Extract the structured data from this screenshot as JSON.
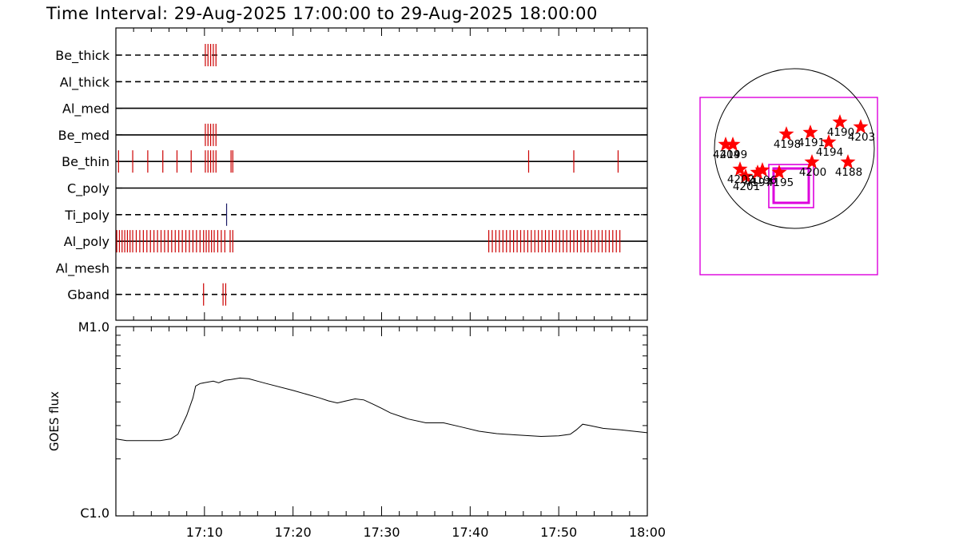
{
  "title": "Time Interval: 29-Aug-2025 17:00:00 to 29-Aug-2025 18:00:00",
  "colors": {
    "event_tick": "#cc0000",
    "event_tick_blue": "#1a1a66",
    "frame": "#000000",
    "fov_box": "#dd00dd",
    "star": "#ff0000"
  },
  "chart_data": [
    {
      "type": "timeline",
      "title": "",
      "x_range_minutes": [
        0,
        60
      ],
      "channels": [
        {
          "name": "Be_thick",
          "line": "dashed",
          "events": [
            {
              "t": 10.1,
              "color": "red"
            },
            {
              "t": 10.4,
              "color": "red"
            },
            {
              "t": 10.7,
              "color": "red"
            },
            {
              "t": 11.0,
              "color": "red"
            },
            {
              "t": 11.3,
              "color": "red"
            }
          ]
        },
        {
          "name": "Al_thick",
          "line": "dashed",
          "events": []
        },
        {
          "name": "Al_med",
          "line": "solid",
          "events": []
        },
        {
          "name": "Be_med",
          "line": "solid",
          "events": [
            {
              "t": 10.1,
              "color": "red"
            },
            {
              "t": 10.4,
              "color": "red"
            },
            {
              "t": 10.7,
              "color": "red"
            },
            {
              "t": 11.0,
              "color": "red"
            },
            {
              "t": 11.3,
              "color": "red"
            }
          ]
        },
        {
          "name": "Be_thin",
          "line": "solid",
          "events": [
            {
              "t": 0.3,
              "color": "red"
            },
            {
              "t": 1.9,
              "color": "red"
            },
            {
              "t": 3.6,
              "color": "red"
            },
            {
              "t": 5.3,
              "color": "red"
            },
            {
              "t": 6.9,
              "color": "red"
            },
            {
              "t": 8.5,
              "color": "red"
            },
            {
              "t": 10.1,
              "color": "red"
            },
            {
              "t": 10.4,
              "color": "red"
            },
            {
              "t": 10.7,
              "color": "red"
            },
            {
              "t": 11.0,
              "color": "red"
            },
            {
              "t": 11.3,
              "color": "red"
            },
            {
              "t": 13.0,
              "color": "red"
            },
            {
              "t": 13.2,
              "color": "red"
            },
            {
              "t": 46.6,
              "color": "red"
            },
            {
              "t": 51.7,
              "color": "red"
            },
            {
              "t": 56.7,
              "color": "red"
            }
          ]
        },
        {
          "name": "C_poly",
          "line": "solid",
          "events": []
        },
        {
          "name": "Ti_poly",
          "line": "dashed",
          "events": [
            {
              "t": 12.5,
              "color": "blue"
            }
          ]
        },
        {
          "name": "Al_poly",
          "line": "solid",
          "events": [
            {
              "t": 0.1,
              "color": "red"
            },
            {
              "t": 0.4,
              "color": "red"
            },
            {
              "t": 0.7,
              "color": "red"
            },
            {
              "t": 1.0,
              "color": "red"
            },
            {
              "t": 1.3,
              "color": "red"
            },
            {
              "t": 1.6,
              "color": "red"
            },
            {
              "t": 1.9,
              "color": "red"
            },
            {
              "t": 2.3,
              "color": "red"
            },
            {
              "t": 2.7,
              "color": "red"
            },
            {
              "t": 3.1,
              "color": "red"
            },
            {
              "t": 3.5,
              "color": "red"
            },
            {
              "t": 3.9,
              "color": "red"
            },
            {
              "t": 4.3,
              "color": "red"
            },
            {
              "t": 4.7,
              "color": "red"
            },
            {
              "t": 5.1,
              "color": "red"
            },
            {
              "t": 5.5,
              "color": "red"
            },
            {
              "t": 5.9,
              "color": "red"
            },
            {
              "t": 6.3,
              "color": "red"
            },
            {
              "t": 6.7,
              "color": "red"
            },
            {
              "t": 7.1,
              "color": "red"
            },
            {
              "t": 7.5,
              "color": "red"
            },
            {
              "t": 7.9,
              "color": "red"
            },
            {
              "t": 8.3,
              "color": "red"
            },
            {
              "t": 8.7,
              "color": "red"
            },
            {
              "t": 9.1,
              "color": "red"
            },
            {
              "t": 9.5,
              "color": "red"
            },
            {
              "t": 9.9,
              "color": "red"
            },
            {
              "t": 10.2,
              "color": "red"
            },
            {
              "t": 10.5,
              "color": "red"
            },
            {
              "t": 10.8,
              "color": "red"
            },
            {
              "t": 11.1,
              "color": "red"
            },
            {
              "t": 11.5,
              "color": "red"
            },
            {
              "t": 11.9,
              "color": "red"
            },
            {
              "t": 12.3,
              "color": "red"
            },
            {
              "t": 12.9,
              "color": "red"
            },
            {
              "t": 13.2,
              "color": "red"
            },
            {
              "t": 42.1,
              "color": "red"
            },
            {
              "t": 42.5,
              "color": "red"
            },
            {
              "t": 42.9,
              "color": "red"
            },
            {
              "t": 43.3,
              "color": "red"
            },
            {
              "t": 43.7,
              "color": "red"
            },
            {
              "t": 44.1,
              "color": "red"
            },
            {
              "t": 44.5,
              "color": "red"
            },
            {
              "t": 44.9,
              "color": "red"
            },
            {
              "t": 45.3,
              "color": "red"
            },
            {
              "t": 45.7,
              "color": "red"
            },
            {
              "t": 46.1,
              "color": "red"
            },
            {
              "t": 46.5,
              "color": "red"
            },
            {
              "t": 46.9,
              "color": "red"
            },
            {
              "t": 47.3,
              "color": "red"
            },
            {
              "t": 47.7,
              "color": "red"
            },
            {
              "t": 48.1,
              "color": "red"
            },
            {
              "t": 48.5,
              "color": "red"
            },
            {
              "t": 48.9,
              "color": "red"
            },
            {
              "t": 49.3,
              "color": "red"
            },
            {
              "t": 49.7,
              "color": "red"
            },
            {
              "t": 50.1,
              "color": "red"
            },
            {
              "t": 50.5,
              "color": "red"
            },
            {
              "t": 50.9,
              "color": "red"
            },
            {
              "t": 51.3,
              "color": "red"
            },
            {
              "t": 51.7,
              "color": "red"
            },
            {
              "t": 52.1,
              "color": "red"
            },
            {
              "t": 52.5,
              "color": "red"
            },
            {
              "t": 52.9,
              "color": "red"
            },
            {
              "t": 53.3,
              "color": "red"
            },
            {
              "t": 53.7,
              "color": "red"
            },
            {
              "t": 54.1,
              "color": "red"
            },
            {
              "t": 54.5,
              "color": "red"
            },
            {
              "t": 54.9,
              "color": "red"
            },
            {
              "t": 55.3,
              "color": "red"
            },
            {
              "t": 55.7,
              "color": "red"
            },
            {
              "t": 56.1,
              "color": "red"
            },
            {
              "t": 56.5,
              "color": "red"
            },
            {
              "t": 56.9,
              "color": "red"
            }
          ]
        },
        {
          "name": "Al_mesh",
          "line": "dashed",
          "events": []
        },
        {
          "name": "Gband",
          "line": "dashed",
          "events": [
            {
              "t": 9.9,
              "color": "red"
            },
            {
              "t": 12.1,
              "color": "red"
            },
            {
              "t": 12.4,
              "color": "red"
            }
          ]
        }
      ]
    },
    {
      "type": "line",
      "title": "",
      "ylabel": "GOES flux",
      "ytick_labels": [
        "M1.0",
        "C1.0"
      ],
      "ylim": [
        1e-06,
        1e-05
      ],
      "yscale": "log",
      "x_range_minutes": [
        0,
        60
      ],
      "xtick_labels": [
        "17:10",
        "17:20",
        "17:30",
        "17:40",
        "17:50",
        "18:00"
      ],
      "x": [
        0,
        1.2,
        3,
        5,
        6.2,
        7,
        8,
        8.7,
        9,
        9.5,
        10,
        11,
        11.6,
        12.3,
        13,
        14,
        15,
        16,
        17,
        20,
        23,
        24,
        25,
        26,
        27,
        28,
        29,
        30,
        31,
        33,
        35,
        37,
        39,
        41,
        43,
        45,
        48,
        50,
        51.3,
        52,
        52.7,
        53.5,
        55,
        57,
        60
      ],
      "y": [
        2.55e-06,
        2.5e-06,
        2.5e-06,
        2.5e-06,
        2.55e-06,
        2.7e-06,
        3.4e-06,
        4.2e-06,
        4.85e-06,
        5e-06,
        5.05e-06,
        5.15e-06,
        5.05e-06,
        5.2e-06,
        5.25e-06,
        5.35e-06,
        5.3e-06,
        5.15e-06,
        5e-06,
        4.6e-06,
        4.2e-06,
        4.05e-06,
        3.95e-06,
        4.05e-06,
        4.15e-06,
        4.1e-06,
        3.9e-06,
        3.7e-06,
        3.5e-06,
        3.25e-06,
        3.1e-06,
        3.1e-06,
        2.95e-06,
        2.8e-06,
        2.72e-06,
        2.68e-06,
        2.63e-06,
        2.65e-06,
        2.7e-06,
        2.85e-06,
        3.05e-06,
        3e-06,
        2.9e-06,
        2.85e-06,
        2.75e-06
      ]
    },
    {
      "type": "scatter",
      "title": "",
      "description": "solar disk map with active regions",
      "points": [
        {
          "label": "4204",
          "x": -0.86,
          "y": 0.05
        },
        {
          "label": "4199",
          "x": -0.77,
          "y": 0.05
        },
        {
          "label": "4198",
          "x": -0.1,
          "y": 0.18
        },
        {
          "label": "4191",
          "x": 0.2,
          "y": 0.2
        },
        {
          "label": "4190",
          "x": 0.57,
          "y": 0.33
        },
        {
          "label": "4203",
          "x": 0.83,
          "y": 0.27
        },
        {
          "label": "4194",
          "x": 0.43,
          "y": 0.08
        },
        {
          "label": "4188",
          "x": 0.67,
          "y": -0.17
        },
        {
          "label": "4200",
          "x": 0.22,
          "y": -0.17
        },
        {
          "label": "4195",
          "x": -0.19,
          "y": -0.3
        },
        {
          "label": "4196",
          "x": -0.4,
          "y": -0.27
        },
        {
          "label": "4197",
          "x": -0.46,
          "y": -0.3
        },
        {
          "label": "4201",
          "x": -0.61,
          "y": -0.35
        },
        {
          "label": "4202",
          "x": -0.68,
          "y": -0.26
        }
      ]
    }
  ]
}
